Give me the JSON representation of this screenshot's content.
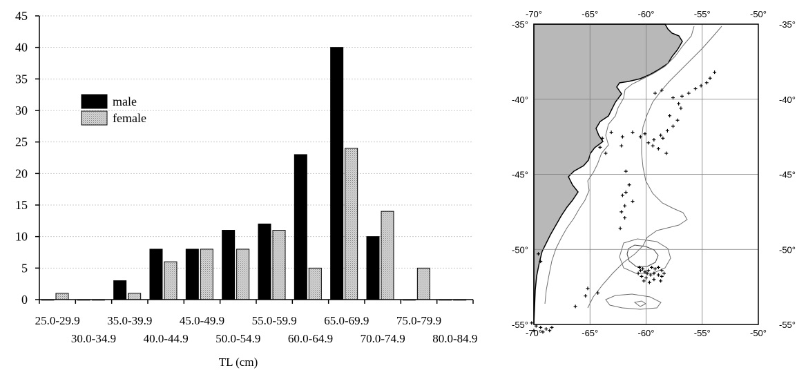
{
  "chart_data": [
    {
      "type": "bar",
      "categories": [
        "25.0-29.9",
        "30.0-34.9",
        "35.0-39.9",
        "40.0-44.9",
        "45.0-49.9",
        "50.0-54.9",
        "55.0-59.9",
        "60.0-64.9",
        "65.0-69.9",
        "70.0-74.9",
        "75.0-79.9",
        "80.0-84.9"
      ],
      "series": [
        {
          "name": "male",
          "color": "#000000",
          "values": [
            0,
            0,
            3,
            8,
            8,
            11,
            12,
            23,
            40,
            10,
            0,
            0
          ]
        },
        {
          "name": "female",
          "color": "#d4d4d4",
          "values": [
            1,
            0,
            1,
            6,
            8,
            8,
            11,
            5,
            24,
            14,
            5,
            0
          ]
        }
      ],
      "title": "",
      "xlabel": "TL (cm)",
      "ylabel": "",
      "ylim": [
        0,
        45
      ],
      "yticks": [
        0,
        5,
        10,
        15,
        20,
        25,
        30,
        35,
        40,
        45
      ],
      "grid": true,
      "legend": "upper-left"
    },
    {
      "type": "map",
      "lon_ticks": [
        "-70°",
        "-65°",
        "-60°",
        "-55°",
        "-50°"
      ],
      "lat_ticks": [
        "-35°",
        "-40°",
        "-45°",
        "-50°",
        "-55°"
      ],
      "lon_range": [
        -70,
        -50
      ],
      "lat_range": [
        -55,
        -35
      ],
      "land_color": "#b8b8b8",
      "sea_color": "#ffffff",
      "stations": [
        [
          -53.9,
          -38.2
        ],
        [
          -54.3,
          -38.6
        ],
        [
          -54.6,
          -38.9
        ],
        [
          -55.1,
          -39.1
        ],
        [
          -55.6,
          -39.3
        ],
        [
          -56.2,
          -39.6
        ],
        [
          -56.8,
          -39.8
        ],
        [
          -57.1,
          -40.3
        ],
        [
          -56.9,
          -40.6
        ],
        [
          -57.6,
          -39.9
        ],
        [
          -58.6,
          -39.4
        ],
        [
          -59.2,
          -39.6
        ],
        [
          -57.9,
          -41.1
        ],
        [
          -57.2,
          -41.4
        ],
        [
          -57.6,
          -41.8
        ],
        [
          -58.1,
          -42.1
        ],
        [
          -58.7,
          -42.4
        ],
        [
          -59.3,
          -42.7
        ],
        [
          -60.1,
          -42.3
        ],
        [
          -59.8,
          -42.9
        ],
        [
          -58.9,
          -43.3
        ],
        [
          -58.2,
          -43.6
        ],
        [
          -58.5,
          -42.6
        ],
        [
          -59.4,
          -43.1
        ],
        [
          -60.5,
          -42.5
        ],
        [
          -61.2,
          -42.2
        ],
        [
          -62.1,
          -42.5
        ],
        [
          -63.1,
          -42.2
        ],
        [
          -63.9,
          -42.6
        ],
        [
          -64.1,
          -43.2
        ],
        [
          -63.6,
          -43.6
        ],
        [
          -62.2,
          -43.1
        ],
        [
          -61.8,
          -44.8
        ],
        [
          -61.5,
          -45.7
        ],
        [
          -61.8,
          -46.2
        ],
        [
          -62.1,
          -46.4
        ],
        [
          -61.9,
          -47.1
        ],
        [
          -62.2,
          -47.5
        ],
        [
          -61.9,
          -47.9
        ],
        [
          -62.3,
          -48.6
        ],
        [
          -61.2,
          -46.8
        ],
        [
          -60.6,
          -51.2
        ],
        [
          -60.3,
          -51.3
        ],
        [
          -60.1,
          -51.5
        ],
        [
          -59.8,
          -51.4
        ],
        [
          -59.5,
          -51.2
        ],
        [
          -59.2,
          -51.3
        ],
        [
          -58.9,
          -51.2
        ],
        [
          -58.6,
          -51.4
        ],
        [
          -60.7,
          -51.6
        ],
        [
          -60.4,
          -51.8
        ],
        [
          -60.0,
          -51.9
        ],
        [
          -59.6,
          -51.7
        ],
        [
          -59.3,
          -51.6
        ],
        [
          -58.9,
          -51.7
        ],
        [
          -58.6,
          -51.8
        ],
        [
          -60.2,
          -52.1
        ],
        [
          -59.7,
          -52.2
        ],
        [
          -59.3,
          -52.0
        ],
        [
          -58.7,
          -52.1
        ],
        [
          -58.4,
          -51.6
        ],
        [
          -60.5,
          -51.4
        ],
        [
          -59.9,
          -51.6
        ],
        [
          -65.2,
          -52.6
        ],
        [
          -65.4,
          -53.1
        ],
        [
          -64.3,
          -52.9
        ],
        [
          -66.3,
          -53.8
        ],
        [
          -69.6,
          -50.3
        ],
        [
          -69.4,
          -50.8
        ],
        [
          -70.2,
          -54.9
        ],
        [
          -69.8,
          -55.1
        ],
        [
          -69.4,
          -55.2
        ],
        [
          -68.9,
          -55.3
        ],
        [
          -68.4,
          -55.2
        ],
        [
          -70.0,
          -55.4
        ],
        [
          -69.2,
          -55.5
        ],
        [
          -68.6,
          -55.4
        ]
      ]
    }
  ]
}
